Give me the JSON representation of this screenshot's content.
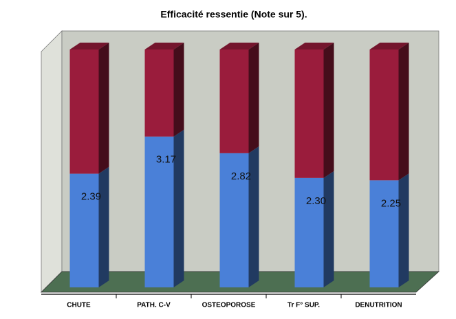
{
  "chart_data": {
    "type": "bar3d_stacked",
    "title": "Efficacité ressentie (Note sur 5).",
    "categories": [
      "CHUTE",
      "PATH. C-V",
      "OSTEOPOROSE",
      "Tr F° SUP.",
      "DENUTRITION"
    ],
    "series": [
      {
        "color": "#4a80d8",
        "values": [
          2.39,
          3.17,
          2.82,
          2.3,
          2.25
        ],
        "value_labels": [
          "2.39",
          "3.17",
          "2.82",
          "2.30",
          "2.25"
        ]
      },
      {
        "color": "#9a1c3c",
        "values": [
          2.61,
          1.83,
          2.18,
          2.7,
          2.75
        ]
      }
    ],
    "ylim": [
      0,
      5
    ]
  }
}
